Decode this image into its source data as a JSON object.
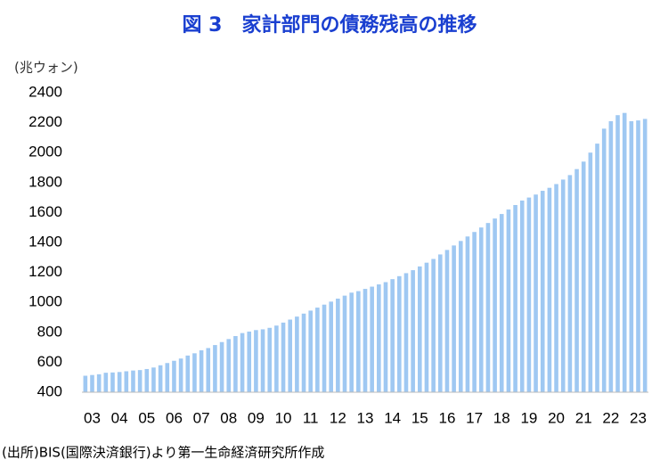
{
  "chart_data": {
    "type": "bar",
    "title": "図 3　家計部門の債務残高の推移",
    "y_axis_label": "(兆ウォン)",
    "source": "(出所)BIS(国際決済銀行)より第一生命経済研究所作成",
    "categories": [
      "03",
      null,
      null,
      null,
      "04",
      null,
      null,
      null,
      "05",
      null,
      null,
      null,
      "06",
      null,
      null,
      null,
      "07",
      null,
      null,
      null,
      "08",
      null,
      null,
      null,
      "09",
      null,
      null,
      null,
      "10",
      null,
      null,
      null,
      "11",
      null,
      null,
      null,
      "12",
      null,
      null,
      null,
      "13",
      null,
      null,
      null,
      "14",
      null,
      null,
      null,
      "15",
      null,
      null,
      null,
      "16",
      null,
      null,
      null,
      "17",
      null,
      null,
      null,
      "18",
      null,
      null,
      null,
      "19",
      null,
      null,
      null,
      "20",
      null,
      null,
      null,
      "21",
      null,
      null,
      null,
      "22",
      null,
      null,
      null,
      "23",
      null,
      null
    ],
    "values": [
      510,
      515,
      520,
      530,
      532,
      535,
      540,
      545,
      548,
      555,
      565,
      580,
      595,
      610,
      625,
      645,
      660,
      680,
      695,
      715,
      735,
      755,
      775,
      795,
      805,
      815,
      820,
      830,
      845,
      865,
      885,
      905,
      925,
      945,
      965,
      985,
      1005,
      1025,
      1045,
      1065,
      1075,
      1090,
      1105,
      1120,
      1135,
      1155,
      1175,
      1195,
      1215,
      1240,
      1265,
      1290,
      1320,
      1350,
      1380,
      1410,
      1440,
      1470,
      1500,
      1530,
      1560,
      1590,
      1620,
      1650,
      1680,
      1700,
      1720,
      1745,
      1765,
      1790,
      1820,
      1850,
      1890,
      1940,
      2000,
      2060,
      2160,
      2210,
      2250,
      2265,
      2210,
      2215,
      2225
    ],
    "color": "#9fc8f2",
    "ylim": [
      400,
      2400
    ],
    "yticks": [
      400,
      600,
      800,
      1000,
      1200,
      1400,
      1600,
      1800,
      2000,
      2200,
      2400
    ],
    "grid": false
  }
}
